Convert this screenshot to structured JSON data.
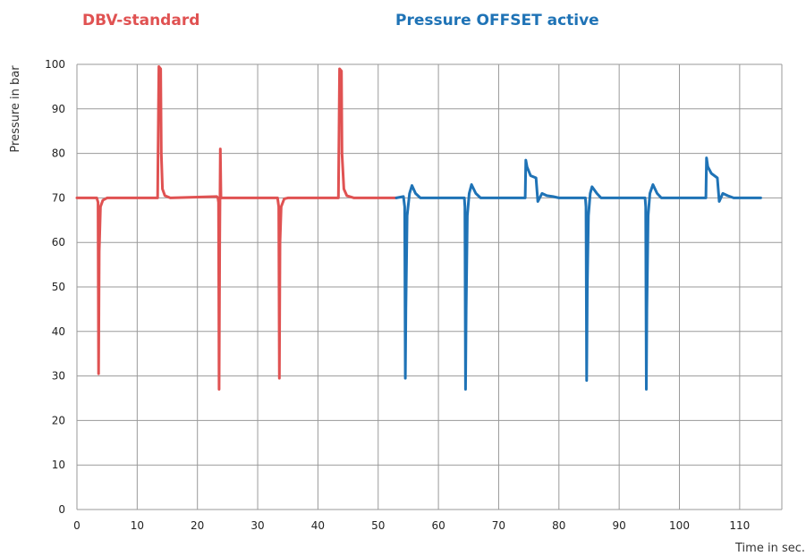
{
  "chart_data": {
    "type": "line",
    "titles": [
      {
        "text": "DBV-standard",
        "color": "#e05252"
      },
      {
        "text": "Pressure OFFSET active",
        "color": "#1f73b6"
      }
    ],
    "xlabel": "Time in sec.",
    "ylabel": "Pressure in bar",
    "xlim": [
      0,
      117
    ],
    "ylim": [
      0,
      100
    ],
    "xticks": [
      0,
      10,
      20,
      30,
      40,
      50,
      60,
      70,
      80,
      90,
      100,
      110
    ],
    "yticks": [
      0,
      10,
      20,
      30,
      40,
      50,
      60,
      70,
      80,
      90,
      100
    ],
    "grid": true,
    "series": [
      {
        "color": "#e05252",
        "points": [
          [
            0,
            70
          ],
          [
            3.3,
            70
          ],
          [
            3.5,
            69
          ],
          [
            3.6,
            30.5
          ],
          [
            3.7,
            58
          ],
          [
            3.9,
            68
          ],
          [
            4.3,
            69.5
          ],
          [
            5,
            70
          ],
          [
            13.4,
            70
          ],
          [
            13.6,
            99.5
          ],
          [
            13.9,
            99
          ],
          [
            14.0,
            80
          ],
          [
            14.2,
            72
          ],
          [
            14.6,
            70.5
          ],
          [
            15.5,
            70
          ],
          [
            23.2,
            70.3
          ],
          [
            23.4,
            70
          ],
          [
            23.5,
            69
          ],
          [
            23.6,
            27
          ],
          [
            23.7,
            60
          ],
          [
            23.8,
            81
          ],
          [
            23.9,
            70
          ],
          [
            25,
            70
          ],
          [
            33.3,
            70
          ],
          [
            33.5,
            68
          ],
          [
            33.6,
            29.5
          ],
          [
            33.7,
            60
          ],
          [
            33.9,
            68
          ],
          [
            34.4,
            69.8
          ],
          [
            35,
            70
          ],
          [
            43.4,
            70
          ],
          [
            43.6,
            99
          ],
          [
            43.9,
            98.5
          ],
          [
            44.0,
            80
          ],
          [
            44.3,
            72
          ],
          [
            44.8,
            70.5
          ],
          [
            46,
            70
          ],
          [
            53,
            70
          ]
        ]
      },
      {
        "color": "#1f73b6",
        "points": [
          [
            53,
            70
          ],
          [
            54.2,
            70.3
          ],
          [
            54.4,
            68
          ],
          [
            54.5,
            29.5
          ],
          [
            54.6,
            45
          ],
          [
            54.8,
            66
          ],
          [
            55.2,
            71
          ],
          [
            55.6,
            72.8
          ],
          [
            56.2,
            71
          ],
          [
            57,
            70
          ],
          [
            64.3,
            70
          ],
          [
            64.4,
            68
          ],
          [
            64.5,
            27
          ],
          [
            64.6,
            45
          ],
          [
            64.8,
            66
          ],
          [
            65.1,
            71
          ],
          [
            65.5,
            73
          ],
          [
            66.2,
            71
          ],
          [
            67,
            70
          ],
          [
            74.4,
            70
          ],
          [
            74.5,
            78.5
          ],
          [
            74.7,
            77
          ],
          [
            75.3,
            75
          ],
          [
            76.2,
            74.5
          ],
          [
            76.5,
            69.2
          ],
          [
            77.2,
            71
          ],
          [
            78,
            70.5
          ],
          [
            79,
            70.3
          ],
          [
            80,
            70
          ],
          [
            84.4,
            70
          ],
          [
            84.5,
            68
          ],
          [
            84.6,
            29
          ],
          [
            84.7,
            50
          ],
          [
            84.9,
            66
          ],
          [
            85.2,
            71
          ],
          [
            85.5,
            72.5
          ],
          [
            86.3,
            71
          ],
          [
            87,
            70
          ],
          [
            94.3,
            70
          ],
          [
            94.4,
            68
          ],
          [
            94.5,
            27
          ],
          [
            94.6,
            45
          ],
          [
            94.8,
            66
          ],
          [
            95.1,
            71
          ],
          [
            95.6,
            73
          ],
          [
            96.3,
            71
          ],
          [
            97,
            70
          ],
          [
            104.4,
            70
          ],
          [
            104.5,
            79
          ],
          [
            104.7,
            77
          ],
          [
            105.3,
            75.5
          ],
          [
            106.3,
            74.5
          ],
          [
            106.6,
            69.2
          ],
          [
            107.2,
            71
          ],
          [
            108,
            70.5
          ],
          [
            109,
            70
          ],
          [
            113.5,
            70
          ]
        ]
      }
    ]
  }
}
